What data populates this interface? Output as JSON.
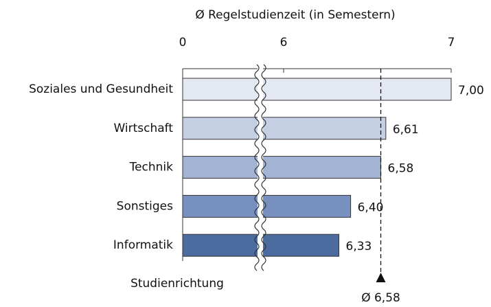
{
  "chart_data": {
    "type": "bar",
    "orientation": "horizontal",
    "title": "Ø Regelstudienzeit (in Semestern)",
    "y_label": "Studienrichtung",
    "categories": [
      "Soziales und Gesundheit",
      "Wirtschaft",
      "Technik",
      "Sonstiges",
      "Informatik"
    ],
    "values": [
      7.0,
      6.61,
      6.58,
      6.4,
      6.33
    ],
    "value_labels": [
      "7,00",
      "6,61",
      "6,58",
      "6,40",
      "6,33"
    ],
    "colors": [
      "#e3e8f2",
      "#c4cfe3",
      "#a2b3d4",
      "#7890c0",
      "#4c6b9f"
    ],
    "xlim": [
      0,
      7
    ],
    "xticks": [
      0,
      6,
      7
    ],
    "axis_break": true,
    "mean_line": {
      "value": 6.58,
      "label": "Ø 6,58"
    }
  }
}
